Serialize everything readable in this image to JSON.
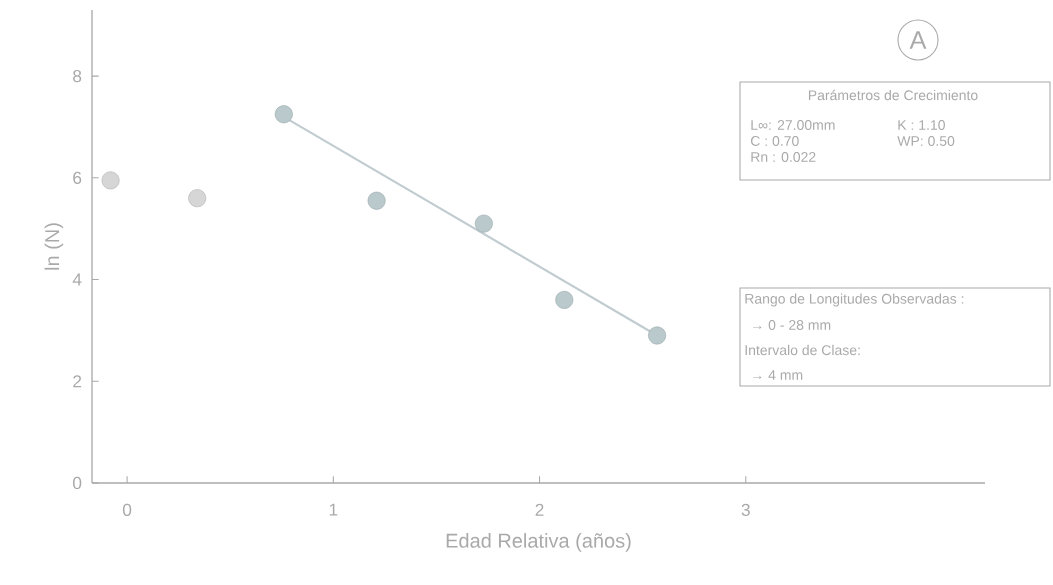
{
  "chart_data": {
    "type": "scatter",
    "xlabel": "Edad Relativa (años)",
    "ylabel": "ln (N)",
    "xlim": [
      -0.17,
      4.16
    ],
    "ylim": [
      0,
      9.3
    ],
    "xticks": [
      0,
      1,
      2,
      3
    ],
    "yticks": [
      0,
      2,
      4,
      6,
      8
    ],
    "grid": false,
    "marker": "circle",
    "series": [
      {
        "color": "#d6d6d6",
        "x": [
          -0.08,
          0.34
        ],
        "values": [
          5.95,
          5.6
        ]
      },
      {
        "color": "#b9c9cc",
        "x": [
          0.76,
          1.21,
          1.73,
          2.12,
          2.57
        ],
        "values": [
          7.25,
          5.55,
          5.1,
          3.6,
          2.9
        ]
      },
      {
        "type": "line",
        "color": "#c0ccd0",
        "marker": "none",
        "x": [
          0.76,
          2.57
        ],
        "values": [
          7.2,
          2.9
        ]
      }
    ],
    "annotations": [
      "A",
      "Parámetros de Crecimiento",
      "L∞: 27.00mm",
      "K  : 1.10",
      "C  :  0.70",
      "WP: 0.50",
      "Rn  :  0.022",
      "Rango de Longitudes Observadas :",
      "→ 0 - 28 mm",
      "Intervalo de Clase:",
      "→ 4 mm"
    ]
  }
}
